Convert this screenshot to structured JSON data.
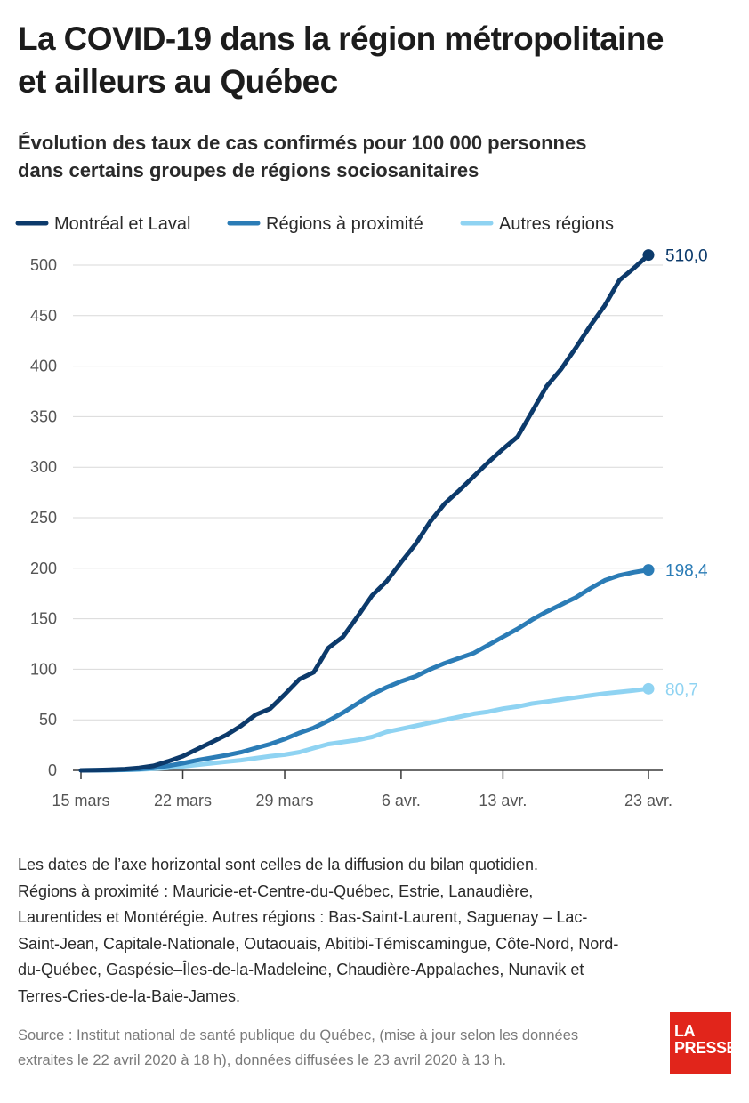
{
  "title_line1": "La COVID-19 dans la région métropolitaine",
  "title_line2": "et ailleurs au Québec",
  "subtitle_line1": "Évolution des taux de cas confirmés pour 100 000 personnes",
  "subtitle_line2": "dans certains groupes de régions sociosanitaires",
  "colors": {
    "montreal": "#0c3a6b",
    "proximite": "#2b7cb6",
    "autres": "#8fd3f2",
    "grid": "#d9d9d9",
    "axis_text": "#555555",
    "logo_bg": "#e1251b"
  },
  "chart_data": {
    "type": "line",
    "x_unit": "day",
    "x": [
      "15 mars",
      "16 mars",
      "17 mars",
      "18 mars",
      "19 mars",
      "20 mars",
      "21 mars",
      "22 mars",
      "23 mars",
      "24 mars",
      "25 mars",
      "26 mars",
      "27 mars",
      "28 mars",
      "29 mars",
      "30 mars",
      "31 mars",
      "1 avr.",
      "2 avr.",
      "3 avr.",
      "4 avr.",
      "5 avr.",
      "6 avr.",
      "7 avr.",
      "8 avr.",
      "9 avr.",
      "10 avr.",
      "11 avr.",
      "12 avr.",
      "13 avr.",
      "14 avr.",
      "15 avr.",
      "16 avr.",
      "17 avr.",
      "18 avr.",
      "19 avr.",
      "20 avr.",
      "21 avr.",
      "22 avr.",
      "23 avr."
    ],
    "x_ticks": [
      "15 mars",
      "22 mars",
      "29 mars",
      "6 avr.",
      "13 avr.",
      "23 avr."
    ],
    "y_ticks": [
      0,
      50,
      100,
      150,
      200,
      250,
      300,
      350,
      400,
      450,
      500
    ],
    "ylim": [
      0,
      510
    ],
    "legend_position": "top",
    "series": [
      {
        "name": "Montréal et Laval",
        "color_key": "montreal",
        "end_label": "510,0",
        "values": [
          0,
          0.3,
          0.7,
          1.2,
          2.5,
          4.5,
          9,
          14,
          21,
          28,
          35,
          44,
          55,
          61,
          75,
          90,
          97,
          121,
          132,
          152,
          173,
          187,
          206,
          224,
          246,
          264,
          277,
          291,
          305,
          318,
          330,
          355,
          380,
          397,
          418,
          440,
          460,
          485,
          497,
          510
        ]
      },
      {
        "name": "Régions à proximité",
        "color_key": "proximite",
        "end_label": "198,4",
        "values": [
          0,
          0.1,
          0.3,
          0.6,
          1.2,
          2.5,
          4.5,
          7,
          10,
          12.5,
          15,
          18,
          22,
          26,
          31,
          37,
          42,
          49,
          57,
          66,
          75,
          82,
          88,
          93,
          100,
          106,
          111,
          116,
          124,
          132,
          140,
          149,
          157,
          164,
          171,
          180,
          188,
          193,
          196,
          198.4
        ]
      },
      {
        "name": "Autres régions",
        "color_key": "autres",
        "end_label": "80,7",
        "values": [
          0,
          0.1,
          0.2,
          0.4,
          0.8,
          1.5,
          2.5,
          4,
          5.5,
          7,
          8.5,
          10,
          12,
          14,
          15.5,
          18,
          22,
          26,
          28,
          30,
          33,
          38,
          41,
          44,
          47,
          50,
          53,
          56,
          58,
          61,
          63,
          66,
          68,
          70,
          72,
          74,
          76,
          77.5,
          79,
          80.7
        ]
      }
    ]
  },
  "notes": [
    "Les dates de l’axe horizontal sont celles de la diffusion du bilan quotidien.",
    "Régions à proximité : Mauricie-et-Centre-du-Québec, Estrie, Lanaudière,",
    "Laurentides et Montérégie. Autres régions : Bas-Saint-Laurent, Saguenay – Lac-",
    "Saint-Jean, Capitale-Nationale, Outaouais, Abitibi-Témiscamingue, Côte-Nord, Nord-",
    "du-Québec, Gaspésie–Îles-de-la-Madeleine, Chaudière-Appalaches, Nunavik et",
    "Terres-Cries-de-la-Baie-James."
  ],
  "source": [
    "Source : Institut national de santé publique du Québec, (mise à jour selon les données",
    "extraites le 22 avril 2020 à 18 h), données diffusées le 23 avril 2020 à 13 h."
  ],
  "logo": {
    "line1": "LA",
    "line2": "PRESSE",
    "icon": "la-presse-logo"
  }
}
